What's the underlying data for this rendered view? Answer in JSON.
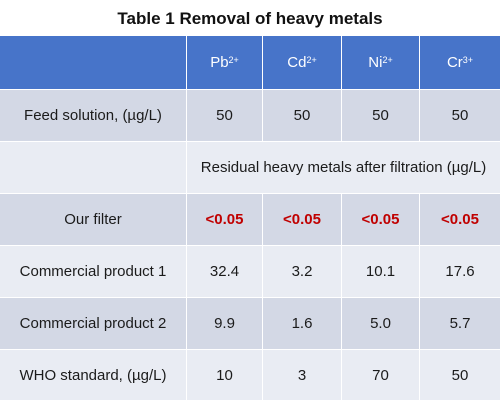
{
  "title": "Table 1 Removal of heavy metals",
  "columns": [
    {
      "base": "Pb",
      "sup": "2+"
    },
    {
      "base": "Cd",
      "sup": "2+"
    },
    {
      "base": "Ni",
      "sup": "2+"
    },
    {
      "base": "Cr",
      "sup": "3+"
    }
  ],
  "rows": [
    {
      "label": "Feed solution, (µg/L)",
      "values": [
        "50",
        "50",
        "50",
        "50"
      ]
    },
    {
      "section": "Residual heavy metals after filtration (µg/L)"
    },
    {
      "label": "Our filter",
      "values": [
        "<0.05",
        "<0.05",
        "<0.05",
        "<0.05"
      ]
    },
    {
      "label": "Commercial product 1",
      "values": [
        "32.4",
        "3.2",
        "10.1",
        "17.6"
      ]
    },
    {
      "label": "Commercial product 2",
      "values": [
        "9.9",
        "1.6",
        "5.0",
        "5.7"
      ]
    },
    {
      "label": "WHO standard, (µg/L)",
      "values": [
        "10",
        "3",
        "70",
        "50"
      ]
    }
  ],
  "colors": {
    "header": "#4774c9",
    "row_dark": "#d3d8e5",
    "row_light": "#e9ecf3",
    "highlight": "#c00000"
  }
}
